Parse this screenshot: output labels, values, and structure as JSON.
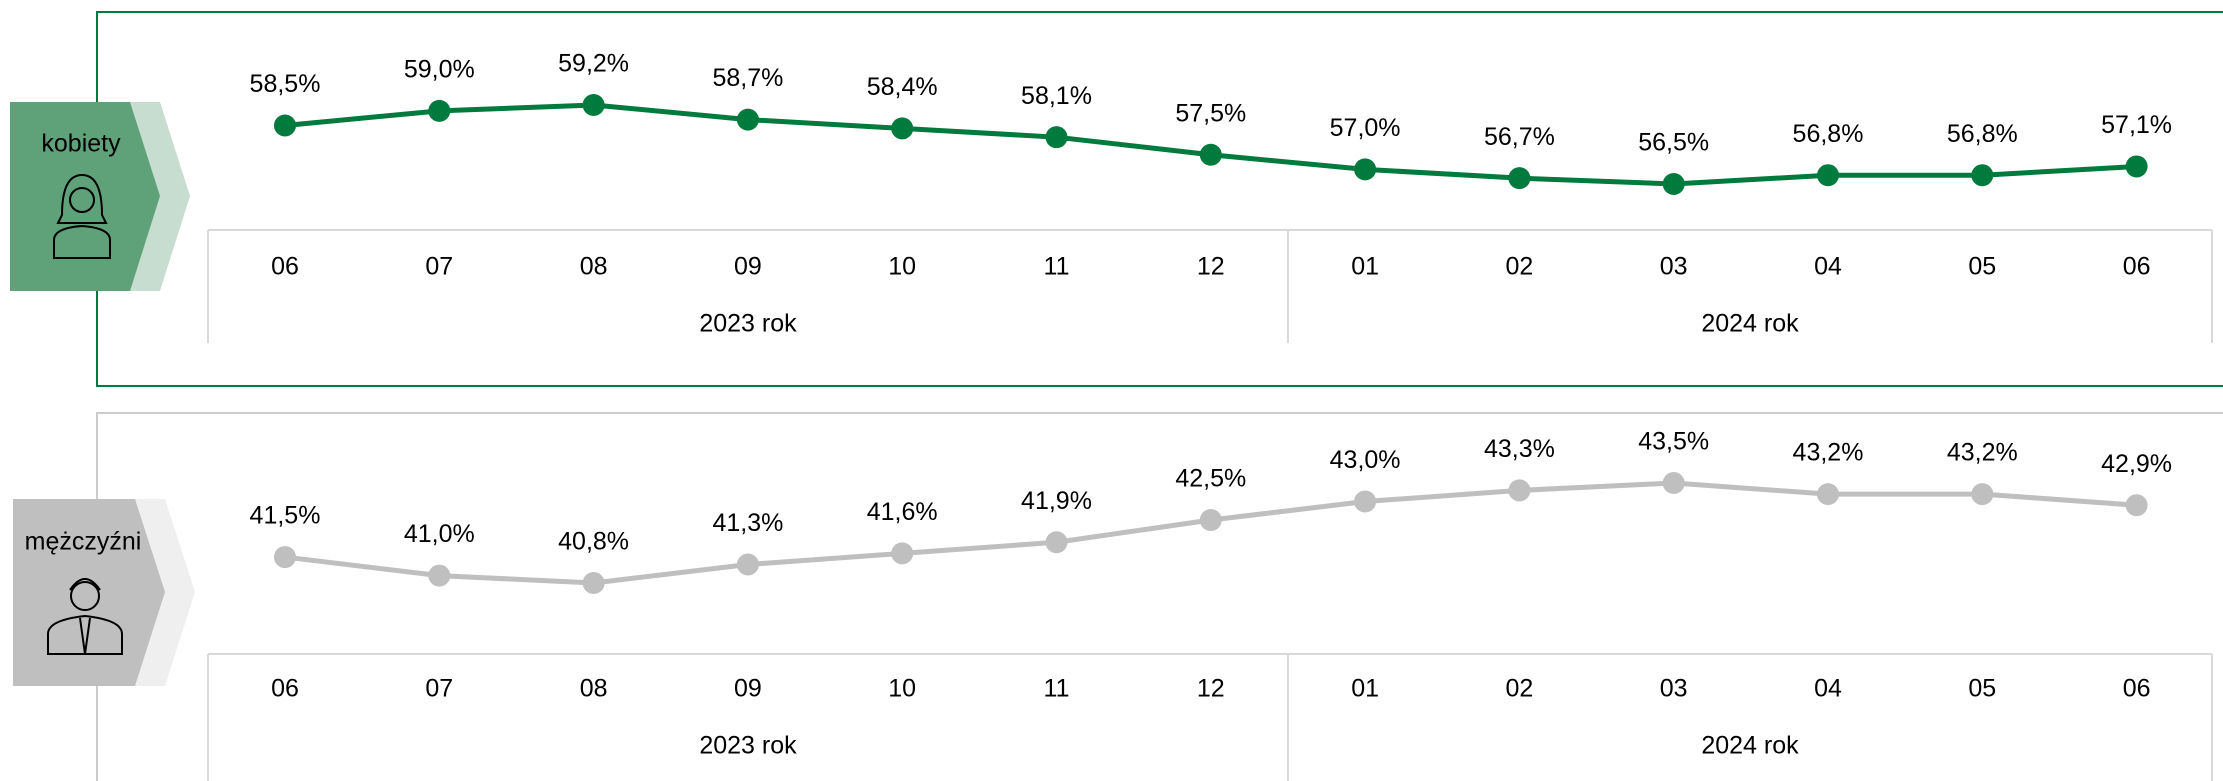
{
  "chart_data": [
    {
      "type": "line",
      "categories": [
        "06",
        "07",
        "08",
        "09",
        "10",
        "11",
        "12",
        "01",
        "02",
        "03",
        "04",
        "05",
        "06"
      ],
      "category_groups": [
        {
          "label": "2023 rok",
          "count": 7
        },
        {
          "label": "2024 rok",
          "count": 6
        }
      ],
      "series": [
        {
          "name": "kobiety",
          "color": "#007a3d",
          "values": [
            58.5,
            59.0,
            59.2,
            58.7,
            58.4,
            58.1,
            57.5,
            57.0,
            56.7,
            56.5,
            56.8,
            56.8,
            57.1
          ],
          "value_labels": [
            "58,5%",
            "59,0%",
            "59,2%",
            "58,7%",
            "58,4%",
            "58,1%",
            "57,5%",
            "57,0%",
            "56,7%",
            "56,5%",
            "56,8%",
            "56,8%",
            "57,1%"
          ]
        }
      ]
    },
    {
      "type": "line",
      "categories": [
        "06",
        "07",
        "08",
        "09",
        "10",
        "11",
        "12",
        "01",
        "02",
        "03",
        "04",
        "05",
        "06"
      ],
      "category_groups": [
        {
          "label": "2023 rok",
          "count": 7
        },
        {
          "label": "2024 rok",
          "count": 6
        }
      ],
      "series": [
        {
          "name": "mężczyźni",
          "color": "#bfbfbf",
          "values": [
            41.5,
            41.0,
            40.8,
            41.3,
            41.6,
            41.9,
            42.5,
            43.0,
            43.3,
            43.5,
            43.2,
            43.2,
            42.9
          ],
          "value_labels": [
            "41,5%",
            "41,0%",
            "40,8%",
            "41,3%",
            "41,6%",
            "41,9%",
            "42,5%",
            "43,0%",
            "43,3%",
            "43,5%",
            "43,2%",
            "43,2%",
            "42,9%"
          ]
        }
      ]
    }
  ]
}
